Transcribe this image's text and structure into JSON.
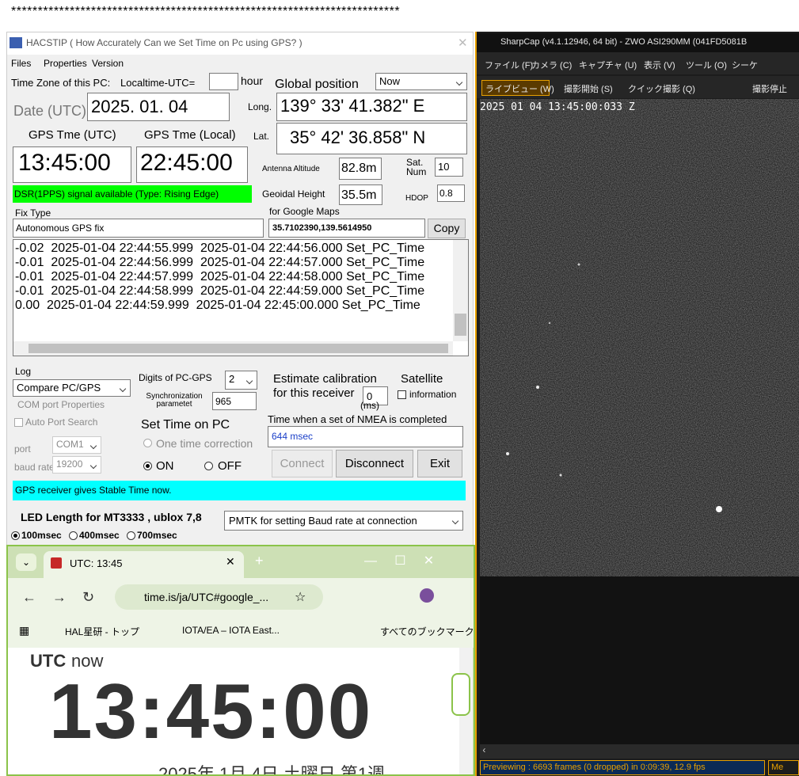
{
  "stars": "*************************************************************************",
  "hacstip": {
    "title": "HACSTIP ( How Accurately Can we Set Time on Pc using GPS? )",
    "menu": [
      "Files",
      "Properties",
      "Version"
    ],
    "tz_label": "Time Zone of this PC:",
    "tz_offset_label": "Localtime-UTC=",
    "hour": "hour",
    "global_position": "Global position",
    "now": "Now",
    "date_label": "Date (UTC)",
    "date": "2025. 01. 04",
    "long_label": "Long.",
    "longitude": "139° 33' 41.382\" E",
    "gps_utc_label": "GPS Tme (UTC)",
    "gps_local_label": "GPS Tme (Local)",
    "lat_label": "Lat.",
    "latitude": "35° 42' 36.858\" N",
    "time_utc": "13:45:00",
    "time_local": "22:45:00",
    "antenna_label": "Antenna Altitude",
    "antenna": "82.8m",
    "sat_label": "Sat. Num",
    "sat": "10",
    "dsr": "DSR(1PPS) signal available (Type: Rising Edge)",
    "geoidal_label": "Geoidal Height",
    "geoidal": "35.5m",
    "hdop_label": "HDOP",
    "hdop": "0.8",
    "fix_label": "Fix Type",
    "maps_label": "for Google Maps",
    "fix": "Autonomous GPS fix",
    "coords": "35.7102390,139.5614950",
    "copy": "Copy",
    "log_lines": [
      "-0.02  2025-01-04 22:44:55.999  2025-01-04 22:44:56.000 Set_PC_Time",
      "-0.01  2025-01-04 22:44:56.999  2025-01-04 22:44:57.000 Set_PC_Time",
      "-0.01  2025-01-04 22:44:57.999  2025-01-04 22:44:58.000 Set_PC_Time",
      "-0.01  2025-01-04 22:44:58.999  2025-01-04 22:44:59.000 Set_PC_Time",
      "0.00  2025-01-04 22:44:59.999  2025-01-04 22:45:00.000 Set_PC_Time"
    ],
    "log_label": "Log",
    "log_mode": "Compare  PC/GPS",
    "digits_label": "Digits of PC-GPS",
    "digits": "2",
    "estimate1": "Estimate calibration",
    "satellite": "Satellite",
    "estimate2": "for this receiver",
    "cal": "0",
    "ms": "(ms)",
    "information": "information",
    "sync_label": "Synchronization parametet",
    "sync": "965",
    "com_props": "COM port Properties",
    "auto_port": "Auto Port Search",
    "set_time": "Set Time on PC",
    "nmea_label": "Time when a set of NMEA is completed",
    "nmea": "644 msec",
    "port_label": "port",
    "port": "COM1",
    "one_time": "One time correction",
    "baud_label": "baud rate",
    "baud": "19200",
    "on": "ON",
    "off": "OFF",
    "connect": "Connect",
    "disconnect": "Disconnect",
    "exit": "Exit",
    "status": "GPS receiver gives Stable Time now.",
    "led_label": "LED Length for MT3333 , ublox 7,8",
    "pmtk": "PMTK for setting Baud rate at connection",
    "led_options": [
      "100msec",
      "400msec",
      "700msec"
    ]
  },
  "chrome": {
    "tab": "UTC: 13:45",
    "url": "time.is/ja/UTC#google_...",
    "bookmarks": [
      "HAL星研 - トップ",
      "IOTA/EA – IOTA East..."
    ],
    "all_bookmarks": "すべてのブックマーク",
    "utc": "UTC",
    "now": "now",
    "clock": "13:45:00",
    "date": "2025年 1月 4日 土曜日 第1週"
  },
  "sharpcap": {
    "title": "SharpCap (v4.1.12946, 64 bit) - ZWO ASI290MM (041FD5081B",
    "menu": [
      "ファイル (F)",
      "カメラ (C)",
      "キャプチャ (U)",
      "表示 (V)",
      "ツール (O)",
      "シーケ"
    ],
    "toolbar": [
      "ライブビュー (W)",
      "撮影開始 (S)",
      "クイック撮影 (Q)",
      "撮影停止"
    ],
    "timestamp": "2025 01 04 13:45:00:033 Z",
    "status": "Previewing : 6693 frames (0 dropped) in 0:09:39, 12.9 fps",
    "status2": "Me"
  }
}
